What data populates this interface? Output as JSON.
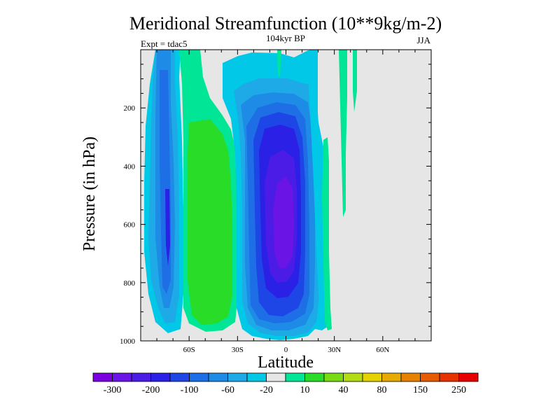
{
  "chart_data": {
    "type": "heatmap",
    "title": "Meridional Streamfunction (10**9kg/m-2)",
    "subtitle": "104kyr BP",
    "left_annotation": "Expt = tdac5",
    "right_annotation": "JJA",
    "xlabel": "Latitude",
    "ylabel": "Pressure (in hPa)",
    "xlim": [
      -90,
      90
    ],
    "ylim": [
      1000,
      0
    ],
    "x_ticks": [
      -60,
      -30,
      0,
      30,
      60
    ],
    "x_tick_labels": [
      "60S",
      "30S",
      "0",
      "30N",
      "60N"
    ],
    "y_ticks": [
      200,
      400,
      600,
      800,
      1000
    ],
    "y_tick_labels": [
      "200",
      "400",
      "600",
      "800",
      "1000"
    ],
    "background_color": "#e6e6e6",
    "colorbar": {
      "colors": [
        "#7a00e0",
        "#6a14e6",
        "#4a1ce6",
        "#2a20e6",
        "#1e46e6",
        "#1e6ee6",
        "#1e8ce6",
        "#1eaae6",
        "#00c8e6",
        "#e6e6e6",
        "#00e696",
        "#28dc28",
        "#78dc14",
        "#b4dc14",
        "#e6d200",
        "#e6aa00",
        "#e68200",
        "#e65a00",
        "#e63200",
        "#e60000"
      ],
      "labels": [
        "-300",
        "-200",
        "-100",
        "-60",
        "-20",
        "10",
        "40",
        "80",
        "150",
        "250"
      ],
      "label_after_box": [
        0,
        2,
        4,
        6,
        8,
        10,
        12,
        14,
        16,
        18
      ]
    },
    "regions": [
      {
        "name": "sh-polar-cell",
        "lat_min": -82,
        "lat_max": -66,
        "p_top": 0,
        "p_bottom": 980,
        "levels": [
          -20,
          -60,
          -100,
          -200,
          -300
        ]
      },
      {
        "name": "sh-ferrel-cell",
        "lat_min": -64,
        "lat_max": -32,
        "p_top": 0,
        "p_bottom": 985,
        "levels": [
          10,
          40
        ]
      },
      {
        "name": "hadley-cell",
        "lat_min": -30,
        "lat_max": 22,
        "p_top": 40,
        "p_bottom": 995,
        "levels": [
          -20,
          -60,
          -100,
          -200,
          -300
        ]
      },
      {
        "name": "nh-weak-cell",
        "lat_min": 23,
        "lat_max": 30,
        "p_top": 0,
        "p_bottom": 970,
        "levels": [
          -20,
          10
        ]
      }
    ]
  }
}
